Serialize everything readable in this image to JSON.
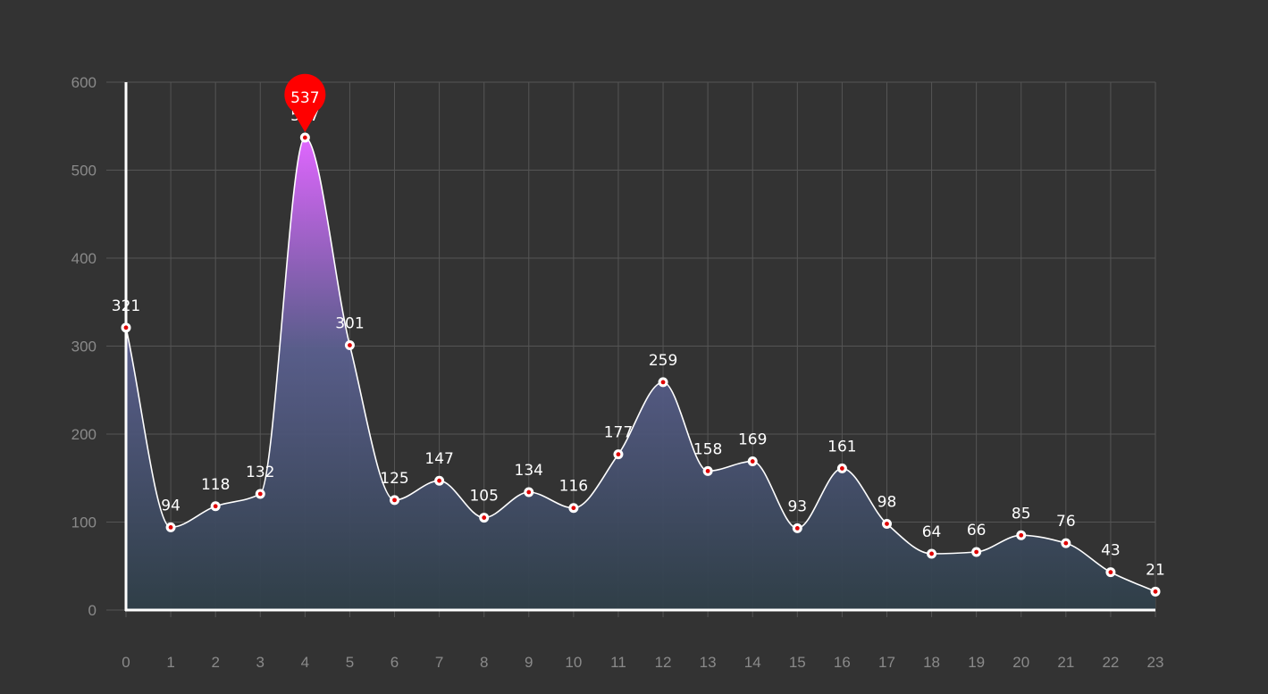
{
  "chart_data": {
    "type": "area",
    "title": "",
    "xlabel": "",
    "ylabel": "",
    "categories": [
      "0",
      "1",
      "2",
      "3",
      "4",
      "5",
      "6",
      "7",
      "8",
      "9",
      "10",
      "11",
      "12",
      "13",
      "14",
      "15",
      "16",
      "17",
      "18",
      "19",
      "20",
      "21",
      "22",
      "23"
    ],
    "values": [
      321,
      94,
      118,
      132,
      537,
      301,
      125,
      147,
      105,
      134,
      116,
      177,
      259,
      158,
      169,
      93,
      161,
      98,
      64,
      66,
      85,
      76,
      43,
      21
    ],
    "ylim": [
      0,
      600
    ],
    "yticks": [
      "0",
      "100",
      "200",
      "300",
      "400",
      "500",
      "600"
    ],
    "grid": true,
    "smooth": true,
    "max_marker": {
      "category": "4",
      "value": 537,
      "label": "537"
    },
    "colors": {
      "background": "#333333",
      "line": "#ffffff",
      "grid": "#555555",
      "axis": "#ffffff",
      "tick_text": "#8a8a8a",
      "point_fill": "#ffffff",
      "point_center": "#e00000",
      "pin": "#ff0000",
      "area_top": "#e066ff",
      "area_bottom": "#2f3f48"
    }
  }
}
